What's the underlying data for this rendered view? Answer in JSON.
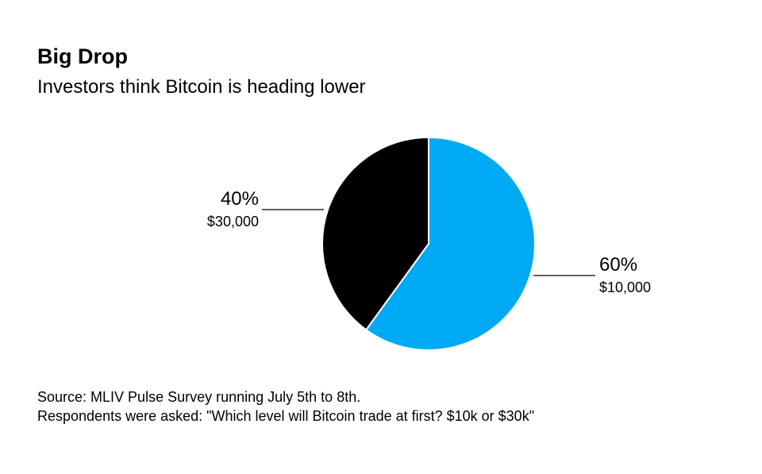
{
  "chart_data": {
    "type": "pie",
    "title": "Big Drop",
    "subtitle": "Investors think Bitcoin is heading lower",
    "slices": [
      {
        "label": "$10,000",
        "value": 60,
        "value_label": "60%",
        "color": "#00a9f4"
      },
      {
        "label": "$30,000",
        "value": 40,
        "value_label": "40%",
        "color": "#000000"
      }
    ],
    "start": "top",
    "direction": "clockwise",
    "legend": "none"
  },
  "footer": {
    "source": "Source: MLIV Pulse Survey running July 5th to 8th.",
    "note": "Respondents were asked: \"Which level will Bitcoin trade at first? $10k or $30k\""
  }
}
